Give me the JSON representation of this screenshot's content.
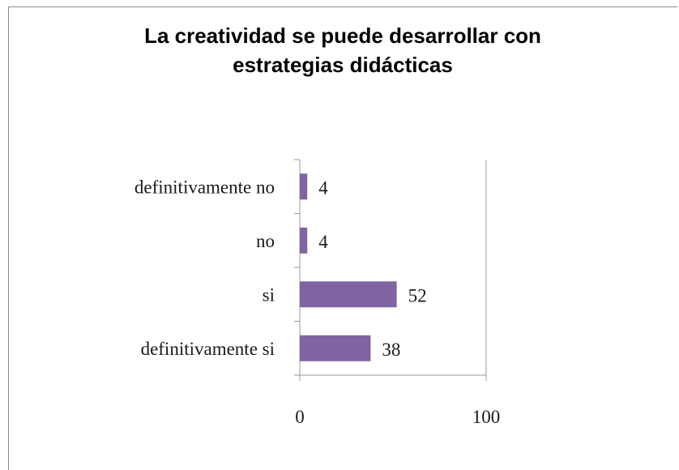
{
  "chart_data": {
    "type": "bar",
    "orientation": "horizontal",
    "title_lines": [
      "La creatividad se puede desarrollar con",
      "estrategias didácticas"
    ],
    "categories": [
      "definitivamente no",
      "no",
      "si",
      "definitivamente si"
    ],
    "values": [
      4,
      4,
      52,
      38
    ],
    "value_labels": [
      "4",
      "4",
      "52",
      "38"
    ],
    "xlim": [
      0,
      100
    ],
    "xticks": [
      "0",
      "100"
    ],
    "xlabel": "",
    "ylabel": "",
    "bar_color": "#8064a2",
    "grid": false,
    "legend": "none"
  }
}
